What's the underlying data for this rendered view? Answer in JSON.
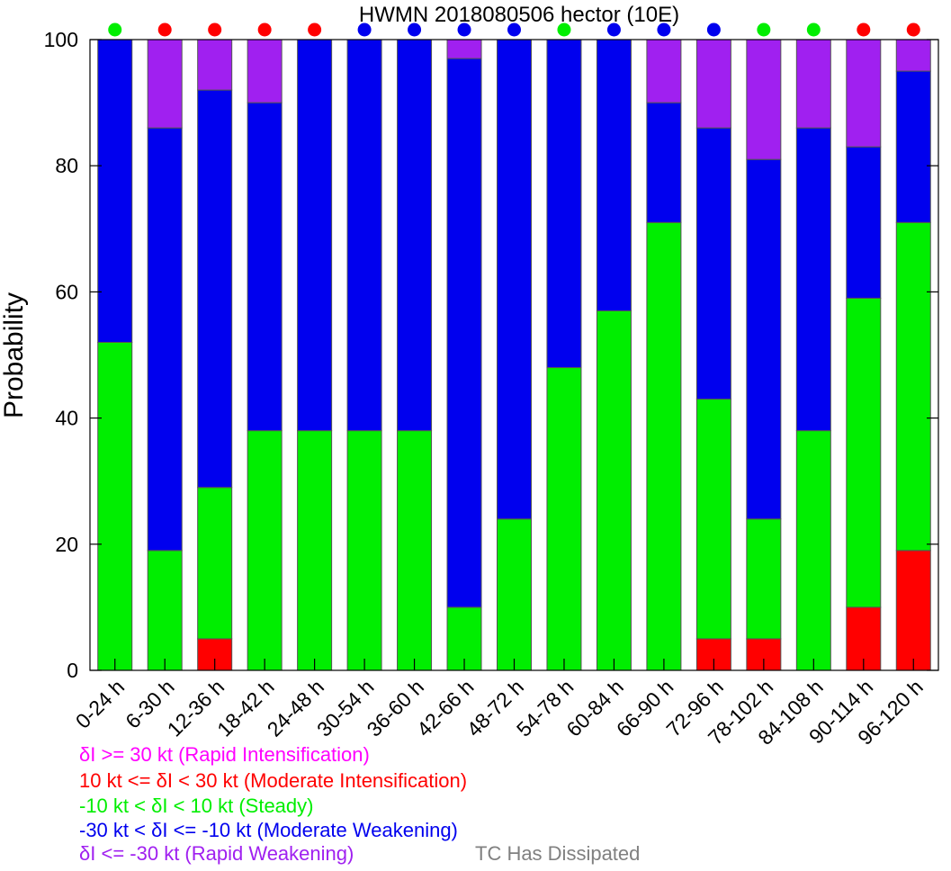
{
  "colors": {
    "rapid_intensification": "#ff00ff",
    "moderate_intensification": "#ff0000",
    "steady": "#00ee00",
    "moderate_weakening": "#0000ee",
    "rapid_weakening": "#a020f0",
    "dissipated": "#808080"
  },
  "legend": [
    {
      "text": "δI >= 30 kt (Rapid Intensification)",
      "color": "#ff00ff"
    },
    {
      "text": "10 kt <= δI < 30 kt (Moderate Intensification)",
      "color": "#ff0000"
    },
    {
      "text": "-10 kt < δI < 10 kt (Steady)",
      "color": "#00ee00"
    },
    {
      "text": "-30 kt < δI <= -10 kt (Moderate Weakening)",
      "color": "#0000ee"
    },
    {
      "text": "δI <= -30 kt (Rapid Weakening)",
      "color": "#a020f0"
    }
  ],
  "dissipated_label": "TC Has Dissipated",
  "chart_data": {
    "type": "bar",
    "stacked": true,
    "title": "HWMN 2018080506 hector (10E)",
    "ylabel": "Probability",
    "xlabel": "",
    "ylim": [
      0,
      100
    ],
    "yticks": [
      0,
      20,
      40,
      60,
      80,
      100
    ],
    "categories": [
      "0-24 h",
      "6-30 h",
      "12-36 h",
      "18-42 h",
      "24-48 h",
      "30-54 h",
      "36-60 h",
      "42-66 h",
      "48-72 h",
      "54-78 h",
      "60-84 h",
      "66-90 h",
      "72-96 h",
      "78-102 h",
      "84-108 h",
      "90-114 h",
      "96-120 h"
    ],
    "series": [
      {
        "key": "moderate_intensification",
        "values": [
          0,
          0,
          5,
          0,
          0,
          0,
          0,
          0,
          0,
          0,
          0,
          0,
          5,
          5,
          0,
          10,
          19
        ]
      },
      {
        "key": "steady",
        "values": [
          52,
          19,
          24,
          38,
          38,
          38,
          38,
          10,
          24,
          48,
          57,
          71,
          38,
          19,
          38,
          49,
          52
        ]
      },
      {
        "key": "moderate_weakening",
        "values": [
          48,
          67,
          63,
          52,
          62,
          62,
          62,
          87,
          76,
          52,
          43,
          19,
          43,
          57,
          48,
          24,
          24
        ]
      },
      {
        "key": "rapid_weakening",
        "values": [
          0,
          14,
          8,
          10,
          0,
          0,
          0,
          3,
          0,
          0,
          0,
          10,
          14,
          19,
          14,
          17,
          5
        ]
      }
    ],
    "top_markers": [
      "steady",
      "moderate_intensification",
      "moderate_intensification",
      "moderate_intensification",
      "moderate_intensification",
      "moderate_weakening",
      "moderate_weakening",
      "moderate_weakening",
      "moderate_weakening",
      "steady",
      "moderate_weakening",
      "moderate_weakening",
      "moderate_weakening",
      "steady",
      "steady",
      "moderate_intensification",
      "moderate_intensification"
    ],
    "grid": false
  }
}
